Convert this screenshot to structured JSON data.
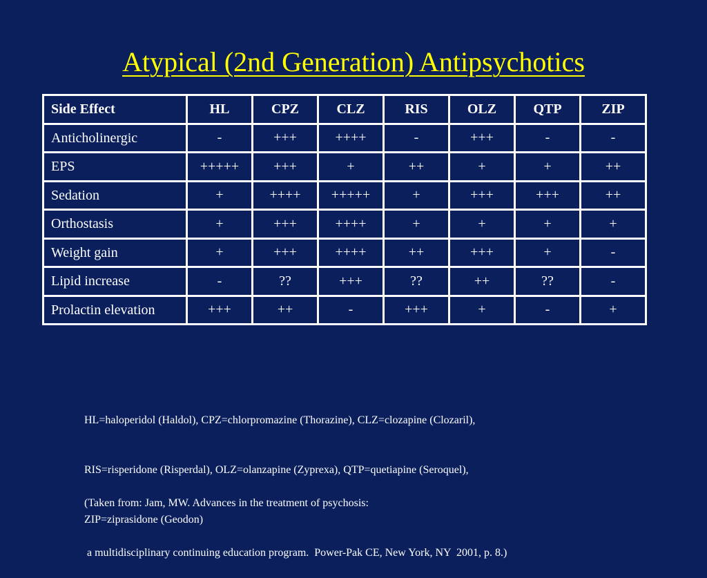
{
  "slide": {
    "title": "Atypical (2nd Generation) Antipsychotics"
  },
  "table": {
    "headers": [
      "Side Effect",
      "HL",
      "CPZ",
      "CLZ",
      "RIS",
      "OLZ",
      "QTP",
      "ZIP"
    ],
    "rows": [
      {
        "label": "Anticholinergic",
        "values": [
          "-",
          "+++",
          "++++",
          "-",
          "+++",
          "-",
          "-"
        ]
      },
      {
        "label": "EPS",
        "values": [
          "+++++",
          "+++",
          "+",
          "++",
          "+",
          "+",
          "++"
        ]
      },
      {
        "label": "Sedation",
        "values": [
          "+",
          "++++",
          "+++++",
          "+",
          "+++",
          "+++",
          "++"
        ]
      },
      {
        "label": "Orthostasis",
        "values": [
          "+",
          "+++",
          "++++",
          "+",
          "+",
          "+",
          "+"
        ]
      },
      {
        "label": "Weight gain",
        "values": [
          "+",
          "+++",
          "++++",
          "++",
          "+++",
          "+",
          "-"
        ]
      },
      {
        "label": "Lipid increase",
        "values": [
          "-",
          "??",
          "+++",
          "??",
          "++",
          "??",
          "-"
        ]
      },
      {
        "label": "Prolactin elevation",
        "values": [
          "+++",
          "++",
          "-",
          "+++",
          "+",
          "-",
          "+"
        ]
      }
    ]
  },
  "legend": {
    "lines": [
      "HL=haloperidol (Haldol), CPZ=chlorpromazine (Thorazine), CLZ=clozapine (Clozaril),",
      "RIS=risperidone (Risperdal), OLZ=olanzapine (Zyprexa), QTP=quetiapine (Seroquel),",
      "ZIP=ziprasidone (Geodon)"
    ]
  },
  "citation": {
    "lines": [
      "(Taken from: Jam, MW. Advances in the treatment of psychosis:",
      " a multidisciplinary continuing education program.  Power-Pak CE, New York, NY  2001, p. 8.)"
    ]
  },
  "colors": {
    "background": "#0a1f5c",
    "title": "#ffff00",
    "text": "#ffffff"
  }
}
